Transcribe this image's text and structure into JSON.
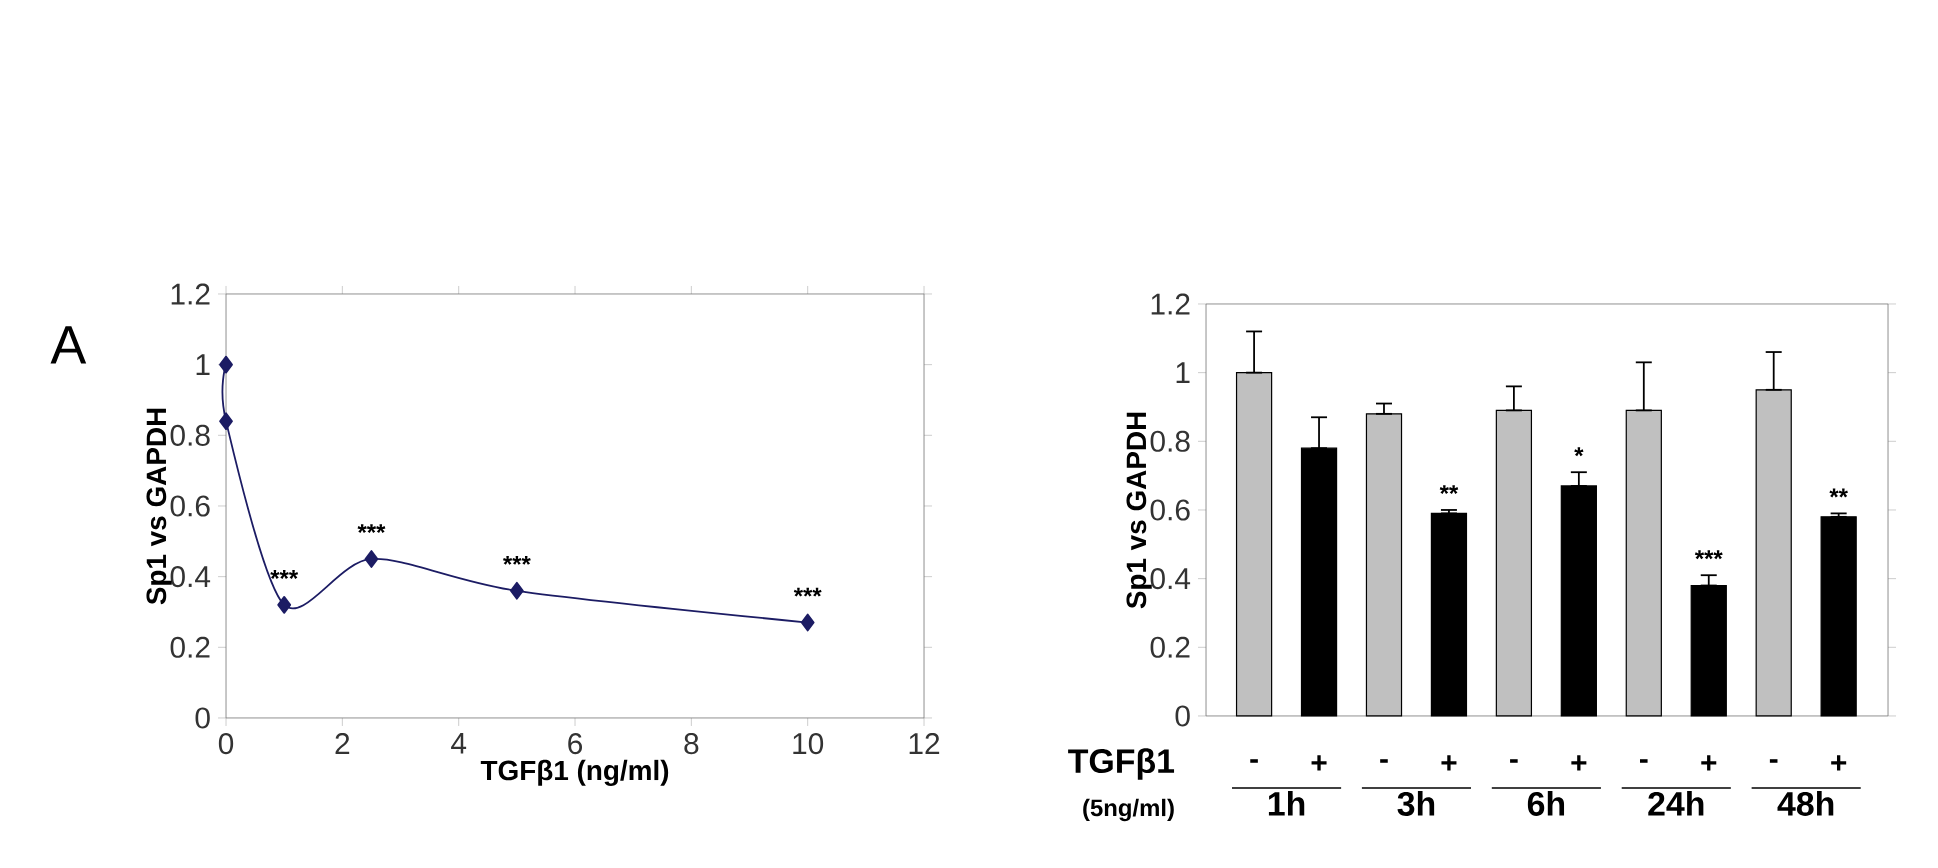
{
  "chart_data": [
    {
      "type": "line",
      "marker": "diamond",
      "xlabel": "TGFβ1 (ng/ml)",
      "ylabel": "Sp1 vs GAPDH",
      "color": "#1c1c64",
      "x": [
        0,
        0,
        1,
        2.5,
        5,
        10
      ],
      "values": [
        1.0,
        0.84,
        0.32,
        0.45,
        0.36,
        0.27
      ],
      "xlim": [
        0,
        12
      ],
      "ylim": [
        0,
        1.2
      ],
      "xticks": [
        0,
        2,
        4,
        6,
        8,
        10,
        12
      ],
      "yticks": [
        0,
        0.2,
        0.4,
        0.6,
        0.8,
        1,
        1.2
      ],
      "annotations": [
        "A",
        {
          "text": "***",
          "x": 1,
          "y": 0.32
        },
        {
          "text": "***",
          "x": 2.5,
          "y": 0.45
        },
        {
          "text": "***",
          "x": 5,
          "y": 0.36
        },
        {
          "text": "***",
          "x": 10,
          "y": 0.27
        }
      ]
    },
    {
      "type": "bar",
      "xlabel": "TGFβ1",
      "ylabel": "Sp1 vs GAPDH",
      "categories": [
        "1h",
        "3h",
        "6h",
        "24h",
        "48h"
      ],
      "series": [
        {
          "name": "-",
          "color": "#c0c0c0",
          "values": [
            1.0,
            0.88,
            0.89,
            0.89,
            0.95
          ],
          "errors": [
            [
              1.0,
              1.12
            ],
            [
              0.88,
              0.91
            ],
            [
              0.89,
              0.96
            ],
            [
              0.89,
              1.03
            ],
            [
              0.95,
              1.06
            ]
          ]
        },
        {
          "name": "+",
          "color": "#000000",
          "values": [
            0.78,
            0.59,
            0.67,
            0.38,
            0.58
          ],
          "errors": [
            [
              0.78,
              0.87
            ],
            [
              0.59,
              0.6
            ],
            [
              0.67,
              0.71
            ],
            [
              0.38,
              0.41
            ],
            [
              0.58,
              0.59
            ]
          ],
          "value_labels": [
            null,
            "**",
            "*",
            "***",
            "**"
          ]
        }
      ],
      "ylim": [
        0,
        1.2
      ],
      "yticks": [
        0,
        0.2,
        0.4,
        0.6,
        0.8,
        1,
        1.2
      ],
      "annotations": [
        "(5ng/ml)"
      ]
    }
  ]
}
